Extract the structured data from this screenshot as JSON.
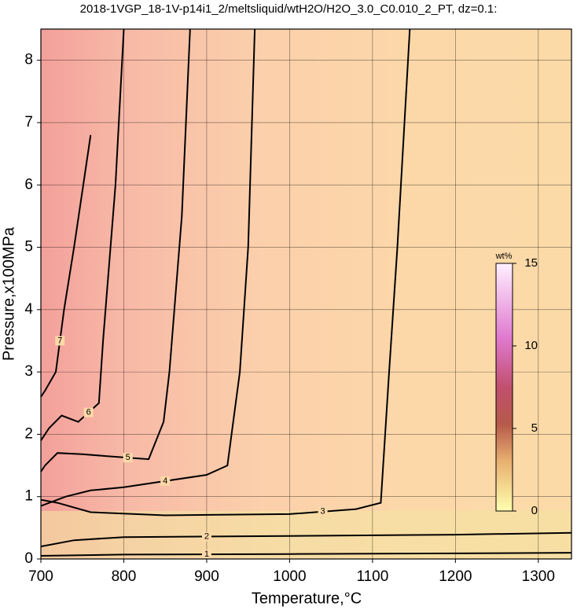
{
  "chart_data": {
    "type": "contour",
    "title": "2018-1VGP_18-1V-p14i1_2/meltsliquid/wtH2O/H2O_3.0_C0.010_2_PT, dz=0.1:",
    "x_label": "Temperature,°C",
    "y_label": "Pressure,x100MPa",
    "xlim": [
      700,
      1340
    ],
    "ylim": [
      0,
      8.5
    ],
    "xticks": [
      700,
      800,
      900,
      1000,
      1100,
      1200,
      1300
    ],
    "yticks": [
      0,
      1,
      2,
      3,
      4,
      5,
      6,
      7,
      8
    ],
    "grid": true,
    "colorbar": {
      "label": "wt%",
      "lim": [
        0,
        15
      ],
      "ticks": [
        0,
        5,
        10,
        15
      ]
    },
    "contours": [
      {
        "level": 1,
        "x": [
          700,
          800,
          1000,
          1200,
          1340
        ],
        "y": [
          0.05,
          0.07,
          0.08,
          0.09,
          0.1
        ]
      },
      {
        "level": 2,
        "x": [
          700,
          740,
          800,
          1000,
          1200,
          1340
        ],
        "y": [
          0.2,
          0.3,
          0.35,
          0.37,
          0.39,
          0.42
        ]
      },
      {
        "level": 3,
        "x": [
          700,
          720,
          760,
          850,
          1000,
          1080,
          1110,
          1120,
          1130,
          1145
        ],
        "y": [
          0.95,
          0.9,
          0.75,
          0.7,
          0.72,
          0.8,
          0.9,
          3,
          5,
          8.5
        ]
      },
      {
        "level": 4,
        "x": [
          700,
          730,
          760,
          800,
          900,
          925,
          940,
          950,
          958
        ],
        "y": [
          0.85,
          1.0,
          1.1,
          1.15,
          1.35,
          1.5,
          3,
          5,
          8.5
        ]
      },
      {
        "level": 5,
        "x": [
          700,
          705,
          720,
          750,
          780,
          830,
          848,
          855,
          870,
          880
        ],
        "y": [
          1.4,
          1.5,
          1.7,
          1.68,
          1.65,
          1.6,
          2.2,
          3,
          5.5,
          8.5
        ]
      },
      {
        "level": 6,
        "x": [
          700,
          710,
          725,
          745,
          770,
          775,
          790,
          800
        ],
        "y": [
          1.9,
          2.1,
          2.3,
          2.2,
          2.5,
          3.5,
          6,
          8.5
        ]
      },
      {
        "level": 7,
        "x": [
          700,
          705,
          718,
          728,
          740,
          760
        ],
        "y": [
          2.6,
          2.7,
          3,
          4,
          5,
          6.8
        ]
      }
    ]
  }
}
